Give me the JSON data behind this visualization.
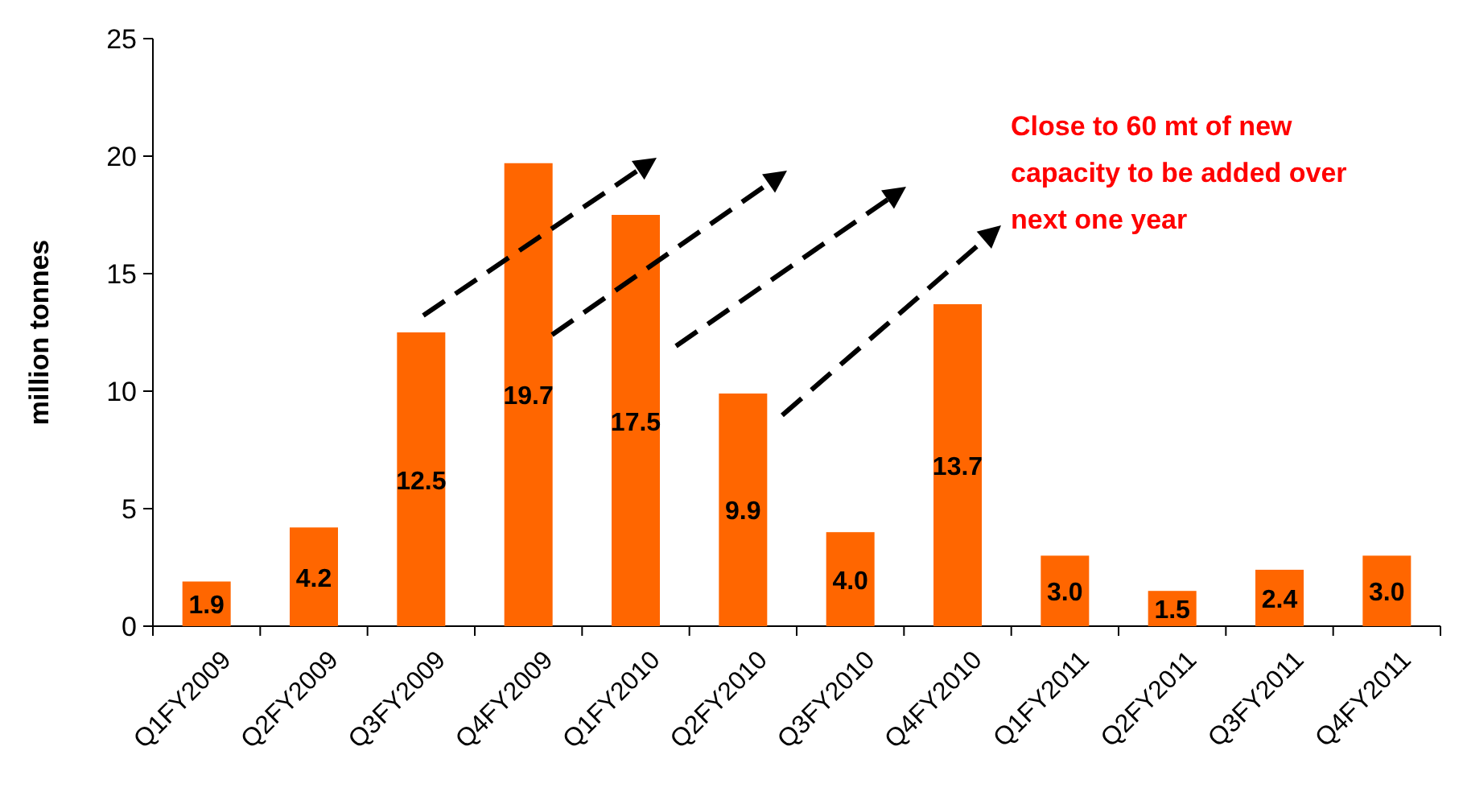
{
  "chart_data": {
    "type": "bar",
    "ylabel": "million tonnes",
    "categories": [
      "Q1FY2009",
      "Q2FY2009",
      "Q3FY2009",
      "Q4FY2009",
      "Q1FY2010",
      "Q2FY2010",
      "Q3FY2010",
      "Q4FY2010",
      "Q1FY2011",
      "Q2FY2011",
      "Q3FY2011",
      "Q4FY2011"
    ],
    "values": [
      1.9,
      4.2,
      12.5,
      19.7,
      17.5,
      9.9,
      4.0,
      13.7,
      3.0,
      1.5,
      2.4,
      3.0
    ],
    "value_labels": [
      "1.9",
      "4.2",
      "12.5",
      "19.7",
      "17.5",
      "9.9",
      "4.0",
      "13.7",
      "3.0",
      "1.5",
      "2.4",
      "3.0"
    ],
    "color": "#ff6600",
    "ylim": [
      0,
      25
    ],
    "yticks": [
      0,
      5,
      10,
      15,
      20,
      25
    ],
    "grid": false,
    "annotations": [
      "Close to 60 mt of new capacity to be added over next one year"
    ]
  }
}
